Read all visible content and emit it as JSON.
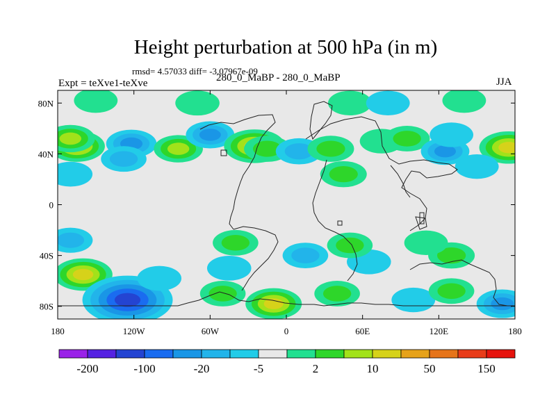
{
  "chart_data": {
    "type": "heatmap",
    "title": "Height perturbation at 500 hPa (in m)",
    "left_string": "Expt = teXve1-teXve",
    "center_string": "280_0_MaBP - 280_0_MaBP",
    "right_string": "JJA",
    "stats_text": "rmsd= 4.57033 diff= -3.07967e-09",
    "xlim": [
      -180,
      180
    ],
    "ylim": [
      -90,
      90
    ],
    "x_ticks": [
      {
        "value": -180,
        "label": "180"
      },
      {
        "value": -120,
        "label": "120W"
      },
      {
        "value": -60,
        "label": "60W"
      },
      {
        "value": 0,
        "label": "0"
      },
      {
        "value": 60,
        "label": "60E"
      },
      {
        "value": 120,
        "label": "120E"
      },
      {
        "value": 180,
        "label": "180"
      }
    ],
    "y_ticks": [
      {
        "value": 80,
        "label": "80N"
      },
      {
        "value": 40,
        "label": "40N"
      },
      {
        "value": 0,
        "label": "0"
      },
      {
        "value": -40,
        "label": "40S"
      },
      {
        "value": -80,
        "label": "80S"
      }
    ],
    "colorbar": {
      "colors": [
        "#9a22e8",
        "#5522e2",
        "#2444d2",
        "#1a6cf0",
        "#1a96e6",
        "#22b4ea",
        "#22cce8",
        "#e8e8e8",
        "#22e090",
        "#2ed62a",
        "#a2e21a",
        "#d6d21a",
        "#e6a21a",
        "#e6741a",
        "#e83c1a",
        "#e6140e"
      ],
      "labels": [
        "-200",
        "-100",
        "-20",
        "-5",
        "2",
        "10",
        "50",
        "150"
      ]
    },
    "features": [
      {
        "lon": -165,
        "lat": 46,
        "value": 30
      },
      {
        "lon": -170,
        "lat": 52,
        "value": 15
      },
      {
        "lon": -122,
        "lat": 48,
        "value": -18
      },
      {
        "lon": -128,
        "lat": 36,
        "value": -8
      },
      {
        "lon": -85,
        "lat": 44,
        "value": 15
      },
      {
        "lon": -60,
        "lat": 55,
        "value": -14
      },
      {
        "lon": -25,
        "lat": 46,
        "value": 40
      },
      {
        "lon": -15,
        "lat": 44,
        "value": 10
      },
      {
        "lon": 10,
        "lat": 42,
        "value": -10
      },
      {
        "lon": 35,
        "lat": 44,
        "value": 10
      },
      {
        "lon": 75,
        "lat": 50,
        "value": 4
      },
      {
        "lon": 95,
        "lat": 52,
        "value": 8
      },
      {
        "lon": 125,
        "lat": 42,
        "value": -14
      },
      {
        "lon": 130,
        "lat": 55,
        "value": -4
      },
      {
        "lon": 175,
        "lat": 45,
        "value": 35
      },
      {
        "lon": -150,
        "lat": 82,
        "value": 4
      },
      {
        "lon": -70,
        "lat": 80,
        "value": 5
      },
      {
        "lon": 50,
        "lat": 80,
        "value": 4
      },
      {
        "lon": 80,
        "lat": 80,
        "value": -4
      },
      {
        "lon": 140,
        "lat": 82,
        "value": 4
      },
      {
        "lon": -170,
        "lat": 24,
        "value": -5
      },
      {
        "lon": 45,
        "lat": 24,
        "value": 10
      },
      {
        "lon": 150,
        "lat": 30,
        "value": -4
      },
      {
        "lon": -160,
        "lat": -55,
        "value": 35
      },
      {
        "lon": -125,
        "lat": -75,
        "value": -100
      },
      {
        "lon": -100,
        "lat": -58,
        "value": -5
      },
      {
        "lon": -170,
        "lat": -28,
        "value": -6
      },
      {
        "lon": -40,
        "lat": -30,
        "value": 8
      },
      {
        "lon": -45,
        "lat": -50,
        "value": -5
      },
      {
        "lon": 15,
        "lat": -40,
        "value": -8
      },
      {
        "lon": 65,
        "lat": -45,
        "value": -5
      },
      {
        "lon": 50,
        "lat": -32,
        "value": 8
      },
      {
        "lon": 130,
        "lat": -40,
        "value": 10
      },
      {
        "lon": 110,
        "lat": -30,
        "value": 4
      },
      {
        "lon": -10,
        "lat": -78,
        "value": 30
      },
      {
        "lon": -50,
        "lat": -70,
        "value": 8
      },
      {
        "lon": 40,
        "lat": -70,
        "value": 8
      },
      {
        "lon": 100,
        "lat": -75,
        "value": -4
      },
      {
        "lon": 130,
        "lat": -68,
        "value": 8
      },
      {
        "lon": 170,
        "lat": -78,
        "value": -20
      }
    ]
  }
}
